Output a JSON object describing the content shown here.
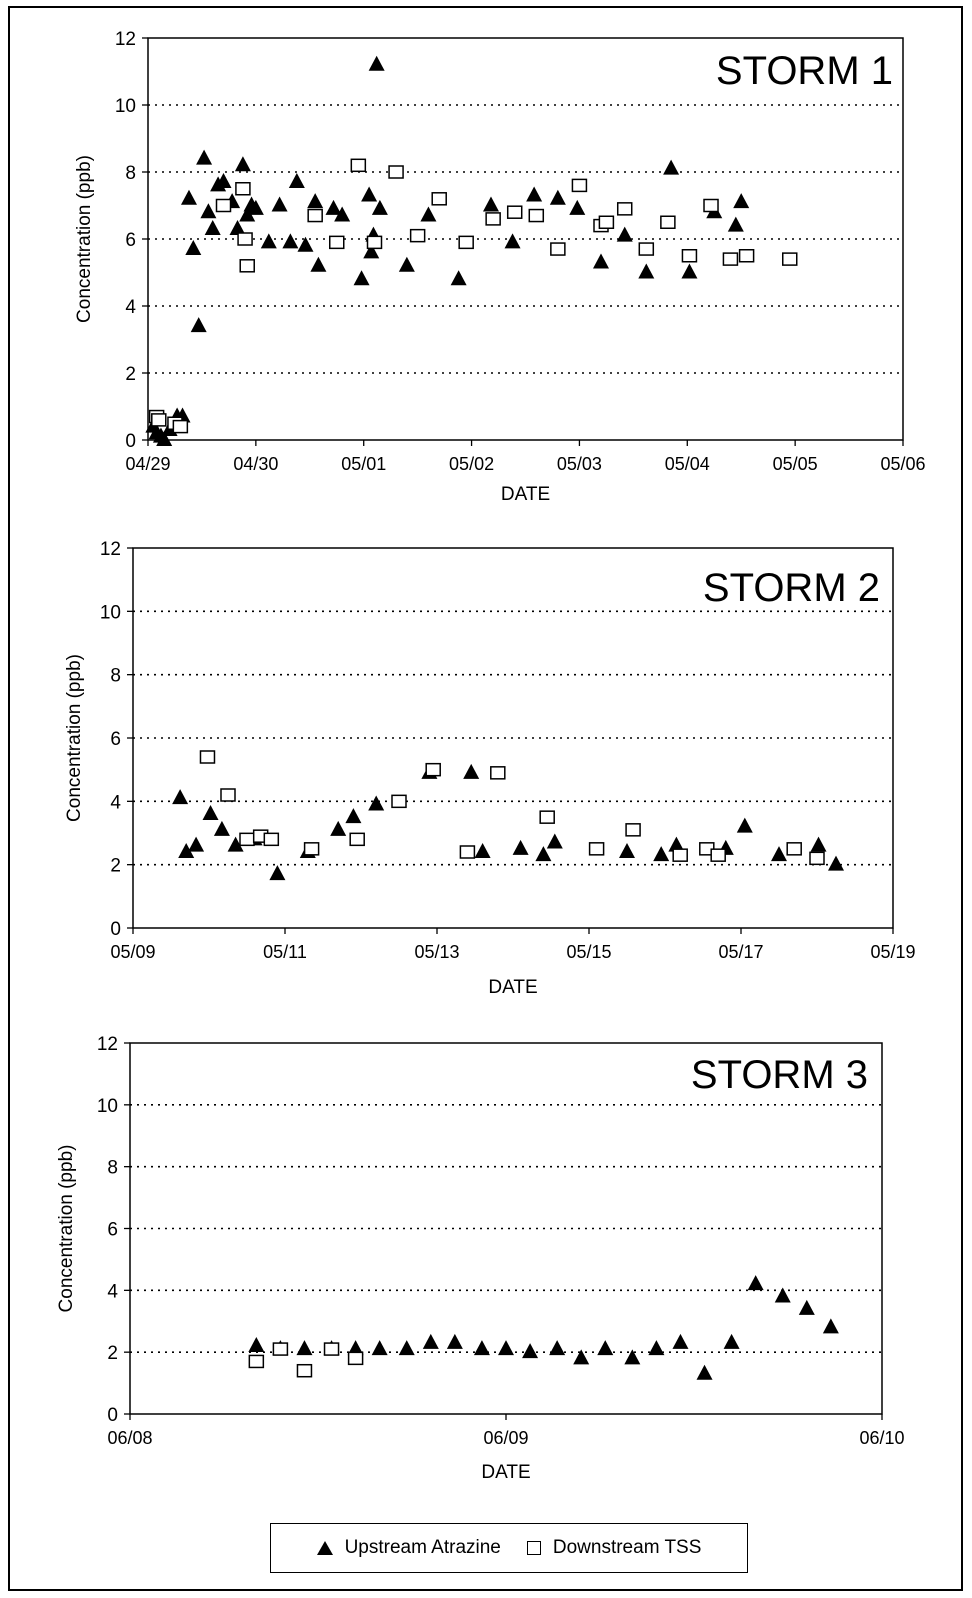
{
  "legend": {
    "series_a": "Upstream Atrazine",
    "series_b": "Downstream TSS"
  },
  "chart_data": [
    {
      "type": "scatter",
      "title": "STORM 1",
      "xlabel": "DATE",
      "ylabel": "Concentration (ppb)",
      "xticks": [
        "04/29",
        "04/30",
        "05/01",
        "05/02",
        "05/03",
        "05/04",
        "05/05",
        "05/06"
      ],
      "xlim": [
        0,
        7
      ],
      "ylim": [
        0,
        12
      ],
      "yticks": [
        0,
        2,
        4,
        6,
        8,
        10,
        12
      ],
      "grid": "horizontal dotted",
      "series": [
        {
          "name": "Upstream Atrazine",
          "marker": "triangle",
          "x": [
            0.05,
            0.08,
            0.12,
            0.15,
            0.2,
            0.27,
            0.32,
            0.38,
            0.42,
            0.47,
            0.52,
            0.56,
            0.6,
            0.65,
            0.7,
            0.78,
            0.83,
            0.88,
            0.92,
            0.96,
            1.0,
            1.12,
            1.22,
            1.32,
            1.38,
            1.46,
            1.55,
            1.58,
            1.72,
            1.8,
            1.98,
            2.05,
            2.07,
            2.09,
            2.12,
            2.15,
            2.4,
            2.6,
            2.88,
            3.18,
            3.38,
            3.58,
            3.8,
            3.98,
            4.2,
            4.42,
            4.62,
            4.85,
            5.02,
            5.25,
            5.45,
            5.5
          ],
          "y": [
            0.4,
            0.2,
            0.1,
            0.0,
            0.3,
            0.7,
            0.7,
            7.2,
            5.7,
            3.4,
            8.4,
            6.8,
            6.3,
            7.6,
            7.7,
            7.1,
            6.3,
            8.2,
            6.7,
            7.0,
            6.9,
            5.9,
            7.0,
            5.9,
            7.7,
            5.8,
            7.1,
            5.2,
            6.9,
            6.7,
            4.8,
            7.3,
            5.6,
            6.1,
            11.2,
            6.9,
            5.2,
            6.7,
            4.8,
            7.0,
            5.9,
            7.3,
            7.2,
            6.9,
            5.3,
            6.1,
            5.0,
            8.1,
            5.0,
            6.8,
            6.4,
            7.1
          ]
        },
        {
          "name": "Downstream TSS",
          "marker": "square",
          "x": [
            0.08,
            0.1,
            0.25,
            0.3,
            0.7,
            0.88,
            0.9,
            0.92,
            1.55,
            1.75,
            1.95,
            2.1,
            2.3,
            2.5,
            2.7,
            2.95,
            3.2,
            3.4,
            3.6,
            3.8,
            4.0,
            4.2,
            4.25,
            4.42,
            4.62,
            4.82,
            5.02,
            5.22,
            5.4,
            5.55,
            5.95
          ],
          "y": [
            0.7,
            0.6,
            0.5,
            0.4,
            7.0,
            7.5,
            6.0,
            5.2,
            6.7,
            5.9,
            8.2,
            5.9,
            8.0,
            6.1,
            7.2,
            5.9,
            6.6,
            6.8,
            6.7,
            5.7,
            7.6,
            6.4,
            6.5,
            6.9,
            5.7,
            6.5,
            5.5,
            7.0,
            5.4,
            5.5,
            5.4
          ]
        }
      ]
    },
    {
      "type": "scatter",
      "title": "STORM 2",
      "xlabel": "DATE",
      "ylabel": "Concentration (ppb)",
      "xticks": [
        "05/09",
        "05/11",
        "05/13",
        "05/15",
        "05/17",
        "05/19"
      ],
      "xlim": [
        0,
        10
      ],
      "ylim": [
        0,
        12
      ],
      "yticks": [
        0,
        2,
        4,
        6,
        8,
        10,
        12
      ],
      "grid": "horizontal dotted",
      "series": [
        {
          "name": "Upstream Atrazine",
          "marker": "triangle",
          "x": [
            0.62,
            0.7,
            0.83,
            1.02,
            1.17,
            1.35,
            1.6,
            1.9,
            2.3,
            2.7,
            2.9,
            3.2,
            3.9,
            4.45,
            4.6,
            5.1,
            5.4,
            5.55,
            6.5,
            6.95,
            7.15,
            7.8,
            8.05,
            8.5,
            9.02,
            9.25
          ],
          "y": [
            4.1,
            2.4,
            2.6,
            3.6,
            3.1,
            2.6,
            2.8,
            1.7,
            2.4,
            3.1,
            3.5,
            3.9,
            4.9,
            4.9,
            2.4,
            2.5,
            2.3,
            2.7,
            2.4,
            2.3,
            2.6,
            2.5,
            3.2,
            2.3,
            2.6,
            2.0
          ]
        },
        {
          "name": "Downstream TSS",
          "marker": "square",
          "x": [
            0.98,
            1.25,
            1.5,
            1.68,
            1.82,
            2.35,
            2.95,
            3.5,
            3.95,
            4.4,
            4.8,
            5.45,
            6.1,
            6.58,
            7.2,
            7.55,
            7.7,
            8.7,
            9.0
          ],
          "y": [
            5.4,
            4.2,
            2.8,
            2.9,
            2.8,
            2.5,
            2.8,
            4.0,
            5.0,
            2.4,
            4.9,
            3.5,
            2.5,
            3.1,
            2.3,
            2.5,
            2.3,
            2.5,
            2.2
          ]
        }
      ]
    },
    {
      "type": "scatter",
      "title": "STORM 3",
      "xlabel": "DATE",
      "ylabel": "Concentration (ppb)",
      "xticks": [
        "06/08",
        "06/09",
        "06/10"
      ],
      "xlim": [
        0,
        2.5
      ],
      "ylim": [
        0,
        12
      ],
      "yticks": [
        0,
        2,
        4,
        6,
        8,
        10,
        12
      ],
      "grid": "horizontal dotted",
      "series": [
        {
          "name": "Upstream Atrazine",
          "marker": "triangle",
          "x": [
            0.42,
            0.5,
            0.58,
            0.67,
            0.75,
            0.83,
            0.92,
            1.0,
            1.08,
            1.17,
            1.25,
            1.33,
            1.42,
            1.5,
            1.58,
            1.67,
            1.75,
            1.83,
            1.91,
            2.0,
            2.08,
            2.17,
            2.25,
            2.33
          ],
          "y": [
            2.2,
            2.1,
            2.1,
            2.1,
            2.1,
            2.1,
            2.1,
            2.3,
            2.3,
            2.1,
            2.1,
            2.0,
            2.1,
            1.8,
            2.1,
            1.8,
            2.1,
            2.3,
            1.3,
            2.3,
            4.2,
            3.8,
            3.4,
            2.8
          ]
        },
        {
          "name": "Downstream TSS",
          "marker": "square",
          "x": [
            0.42,
            0.5,
            0.58,
            0.67,
            0.75
          ],
          "y": [
            1.7,
            2.1,
            1.4,
            2.1,
            1.8
          ]
        }
      ]
    }
  ]
}
